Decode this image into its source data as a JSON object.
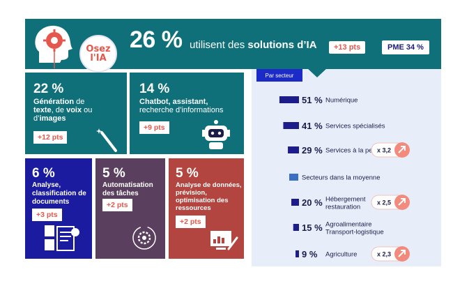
{
  "header": {
    "logo_line1": "Osez",
    "logo_line2": "l'IA",
    "headline_pct": "26 %",
    "headline_text_pre": "utilisent des ",
    "headline_text_bold": "solutions d’IA",
    "gain": "+13 pts",
    "pme": "PME 34 %"
  },
  "cards": {
    "generation": {
      "pct": "22 %",
      "desc_bold1": "Génération",
      "desc_rest1": " de",
      "desc_bold2": "texte",
      "desc_rest2": ", de ",
      "desc_bold3": "voix",
      "desc_rest3": " ou",
      "desc_line3_pre": "d’",
      "desc_bold4": "images",
      "gain": "+12 pts"
    },
    "chatbot": {
      "pct": "14 %",
      "desc_bold": "Chatbot, assistant,",
      "desc_rest": "recherche d’informations",
      "gain": "+9 pts"
    },
    "analyse": {
      "pct": "6 %",
      "desc": "Analyse, classification de documents",
      "gain": "+3 pts"
    },
    "automatisation": {
      "pct": "5 %",
      "desc": "Automatisation des tâches",
      "gain": "+2 pts"
    },
    "donnees": {
      "pct": "5 %",
      "desc": "Analyse de données, prévision, optimisation des ressources",
      "gain": "+2 pts"
    }
  },
  "sector_panel": {
    "tab_label": "Par secteur"
  },
  "chart_data": {
    "type": "bar",
    "orientation": "horizontal",
    "title": "Par secteur",
    "unit": "%",
    "categories": [
      "Numérique",
      "Services spécialisés",
      "Services à la personne",
      "Secteurs dans la moyenne",
      "Hébergement restauration",
      "Agroalimentaire Transport-logistique",
      "Agriculture"
    ],
    "values": [
      51,
      41,
      29,
      null,
      20,
      15,
      9
    ],
    "value_labels": [
      "51 %",
      "41 %",
      "29 %",
      "",
      "20 %",
      "15 %",
      "9 %"
    ],
    "multipliers": [
      "",
      "",
      "x 3,2",
      "",
      "x 2,5",
      "",
      "x 2,3"
    ],
    "bar_color": "#1c1c8a",
    "average_marker_color": "#3b6fc4"
  },
  "colors": {
    "teal": "#10707a",
    "navy": "#1b1ba0",
    "plum": "#5b3f5e",
    "brick": "#b2453f",
    "accent": "#e5574c",
    "panel_bg": "#e8eef9"
  },
  "icons": [
    "head-gear-icon",
    "magic-wand-icon",
    "robot-icon",
    "documents-icon",
    "gear-cycle-icon",
    "data-screen-icon",
    "up-arrow-icon"
  ]
}
